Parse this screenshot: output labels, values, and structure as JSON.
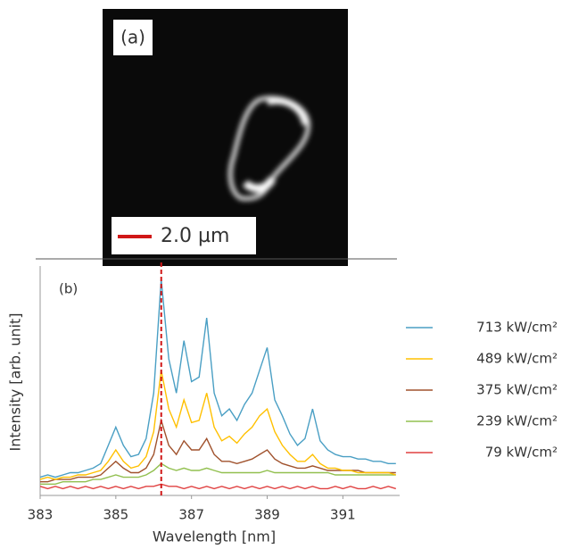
{
  "panel_a": {
    "label": "(a)",
    "scale_bar": "2.0 µm"
  },
  "chart_data": {
    "type": "line",
    "panel_label": "(b)",
    "x_label": "Wavelength [nm]",
    "y_label": "Intensity [arb. unit]",
    "x": [
      383.0,
      383.2,
      383.4,
      383.6,
      383.8,
      384.0,
      384.2,
      384.4,
      384.6,
      384.8,
      385.0,
      385.2,
      385.4,
      385.6,
      385.8,
      386.0,
      386.2,
      386.4,
      386.6,
      386.8,
      387.0,
      387.2,
      387.4,
      387.6,
      387.8,
      388.0,
      388.2,
      388.4,
      388.6,
      388.8,
      389.0,
      389.2,
      389.4,
      389.6,
      389.8,
      390.0,
      390.2,
      390.4,
      390.6,
      390.8,
      391.0,
      391.2,
      391.4,
      391.6,
      391.8,
      392.0,
      392.2,
      392.4
    ],
    "series": [
      {
        "name": "713 kW/cm²",
        "color": "#4a9fc4",
        "values": [
          8,
          9,
          8,
          9,
          10,
          10,
          11,
          12,
          14,
          22,
          30,
          22,
          17,
          18,
          25,
          45,
          95,
          60,
          45,
          68,
          50,
          52,
          78,
          45,
          35,
          38,
          33,
          40,
          45,
          55,
          65,
          42,
          35,
          27,
          22,
          25,
          38,
          24,
          20,
          18,
          17,
          17,
          16,
          16,
          15,
          15,
          14,
          14
        ]
      },
      {
        "name": "489 kW/cm²",
        "color": "#ffc000",
        "values": [
          7,
          8,
          7,
          8,
          8,
          9,
          9,
          10,
          11,
          15,
          20,
          15,
          12,
          13,
          17,
          28,
          55,
          38,
          30,
          42,
          32,
          33,
          45,
          30,
          24,
          26,
          23,
          27,
          30,
          35,
          38,
          28,
          22,
          18,
          15,
          15,
          18,
          14,
          12,
          12,
          11,
          11,
          10,
          10,
          10,
          10,
          10,
          9
        ]
      },
      {
        "name": "375 kW/cm²",
        "color": "#a0522d",
        "values": [
          6,
          6,
          7,
          7,
          7,
          8,
          8,
          8,
          9,
          12,
          15,
          12,
          10,
          10,
          12,
          18,
          33,
          22,
          18,
          24,
          20,
          20,
          25,
          18,
          15,
          15,
          14,
          15,
          16,
          18,
          20,
          16,
          14,
          13,
          12,
          12,
          13,
          12,
          11,
          11,
          11,
          11,
          11,
          10,
          10,
          10,
          10,
          10
        ]
      },
      {
        "name": "239 kW/cm²",
        "color": "#92c050",
        "values": [
          5,
          5,
          5,
          6,
          6,
          6,
          6,
          7,
          7,
          8,
          9,
          8,
          8,
          8,
          9,
          11,
          14,
          12,
          11,
          12,
          11,
          11,
          12,
          11,
          10,
          10,
          10,
          10,
          10,
          10,
          11,
          10,
          10,
          10,
          10,
          10,
          10,
          10,
          10,
          9,
          9,
          9,
          9,
          9,
          9,
          9,
          9,
          9
        ]
      },
      {
        "name": "79 kW/cm²",
        "color": "#e04040",
        "values": [
          4,
          3,
          4,
          3,
          4,
          3,
          4,
          3,
          4,
          3,
          4,
          3,
          4,
          3,
          4,
          4,
          5,
          4,
          4,
          3,
          4,
          3,
          4,
          3,
          4,
          3,
          4,
          3,
          4,
          3,
          4,
          3,
          4,
          3,
          4,
          3,
          4,
          3,
          3,
          4,
          3,
          4,
          3,
          3,
          4,
          3,
          4,
          3
        ]
      }
    ],
    "marker_x": 386.2,
    "marker_color": "#d01818",
    "xlim": [
      383,
      392.5
    ],
    "xticks": [
      383,
      385,
      387,
      389,
      391
    ],
    "ylim": [
      0,
      100
    ],
    "legend": "right"
  }
}
